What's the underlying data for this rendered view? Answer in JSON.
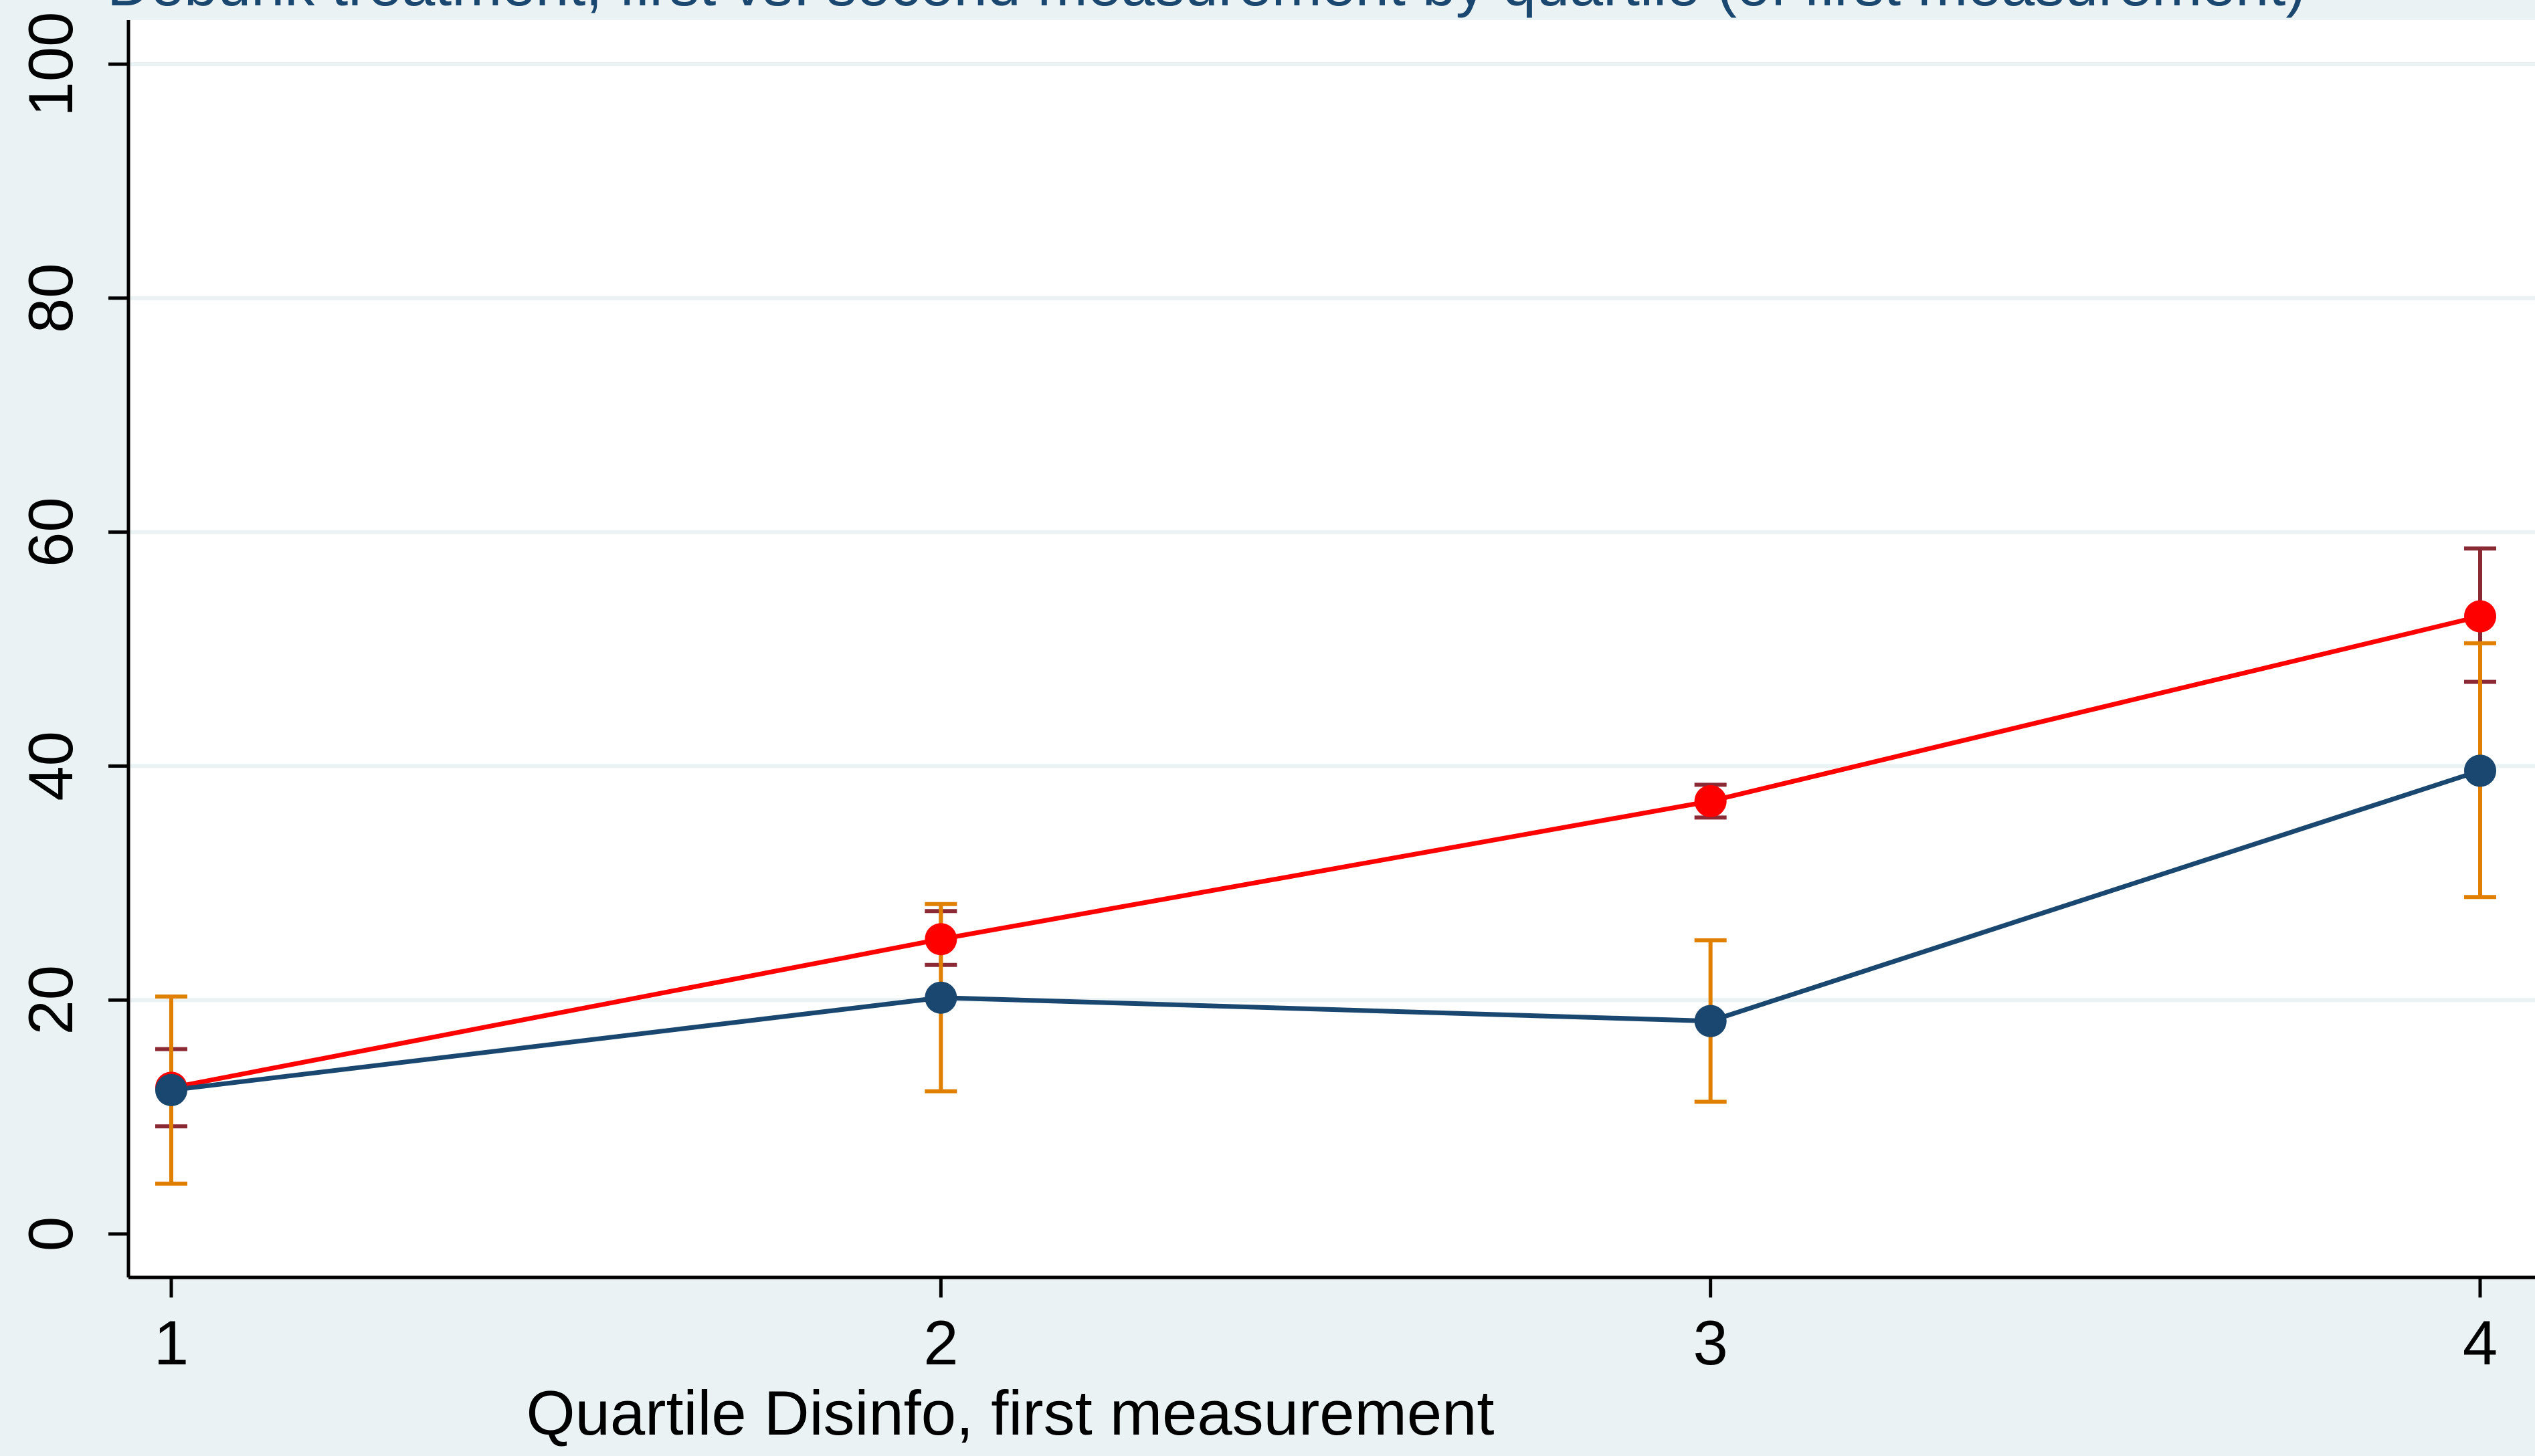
{
  "chart_data": {
    "type": "line",
    "title": "Debunk treatment, first vs. second measurement by quartile (of first measurement)",
    "xlabel": "Quartile Disinfo, first measurement",
    "ylabel": "",
    "x": [
      1,
      2,
      3,
      4
    ],
    "x_ticks": [
      "1",
      "2",
      "3",
      "4"
    ],
    "y_ticks": [
      "0",
      "20",
      "40",
      "60",
      "80",
      "100"
    ],
    "xlim": [
      0.95,
      4.0
    ],
    "ylim": [
      -3.5,
      103
    ],
    "grid": true,
    "legend": "none",
    "series": [
      {
        "color": "#ff0000",
        "ci_color": "#8b2a35",
        "values": [
          12.5,
          25.2,
          37.0,
          52.8
        ],
        "ci_low": [
          9.2,
          23.0,
          35.6,
          47.2
        ],
        "ci_high": [
          15.8,
          27.6,
          38.4,
          58.6
        ]
      },
      {
        "color": "#1a476f",
        "ci_color": "#e07f00",
        "values": [
          12.3,
          20.2,
          18.2,
          39.6
        ],
        "ci_low": [
          4.3,
          12.2,
          11.3,
          28.8
        ],
        "ci_high": [
          20.3,
          28.2,
          25.1,
          50.5
        ]
      }
    ]
  }
}
